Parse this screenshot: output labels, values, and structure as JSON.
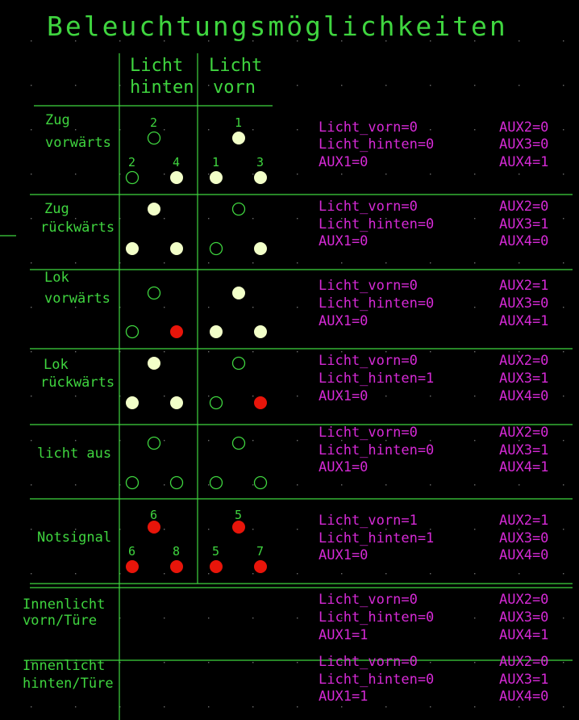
{
  "title": "Beleuchtungsmöglichkeiten",
  "headers": [
    {
      "line1": "Licht",
      "line2": "hinten"
    },
    {
      "line1": "Licht",
      "line2": "vorn"
    }
  ],
  "colors": {
    "background": "#000000",
    "lines": "#3fd53f",
    "text_green": "#3fd53f",
    "text_magenta": "#d62ad6",
    "light_on": "#f2ffc8",
    "light_red": "#e8150a",
    "dot_grid": "#c8c8c8"
  },
  "rows": [
    {
      "label": [
        "Zug",
        "vorwärts"
      ],
      "rear": {
        "top": "off",
        "left": "off",
        "right": "on",
        "top_num": "2",
        "left_num": "2",
        "right_num": "4"
      },
      "front": {
        "top": "on",
        "left": "on",
        "right": "on",
        "top_num": "1",
        "left_num": "1",
        "right_num": "3"
      },
      "values": {
        "licht_vorn": "Licht_vorn=0",
        "licht_hinten": "Licht_hinten=0",
        "aux1": "AUX1=0",
        "aux2": "AUX2=0",
        "aux3": "AUX3=0",
        "aux4": "AUX4=1"
      }
    },
    {
      "label": [
        "Zug",
        "rückwärts"
      ],
      "rear": {
        "top": "on",
        "left": "on",
        "right": "on"
      },
      "front": {
        "top": "off",
        "left": "off",
        "right": "on"
      },
      "values": {
        "licht_vorn": "Licht_vorn=0",
        "licht_hinten": "Licht_hinten=0",
        "aux1": "AUX1=0",
        "aux2": "AUX2=0",
        "aux3": "AUX3=1",
        "aux4": "AUX4=0"
      }
    },
    {
      "label": [
        "Lok",
        "vorwärts"
      ],
      "rear": {
        "top": "off",
        "left": "off",
        "right": "red"
      },
      "front": {
        "top": "on",
        "left": "on",
        "right": "on"
      },
      "values": {
        "licht_vorn": "Licht_vorn=0",
        "licht_hinten": "Licht_hinten=0",
        "aux1": "AUX1=0",
        "aux2": "AUX2=1",
        "aux3": "AUX3=0",
        "aux4": "AUX4=1"
      }
    },
    {
      "label": [
        "Lok",
        "rückwärts"
      ],
      "rear": {
        "top": "on",
        "left": "on",
        "right": "on"
      },
      "front": {
        "top": "off",
        "left": "off",
        "right": "red"
      },
      "values": {
        "licht_vorn": "Licht_vorn=0",
        "licht_hinten": "Licht_hinten=1",
        "aux1": "AUX1=0",
        "aux2": "AUX2=0",
        "aux3": "AUX3=1",
        "aux4": "AUX4=0"
      }
    },
    {
      "label": [
        "licht aus"
      ],
      "rear": {
        "top": "off",
        "left": "off",
        "right": "off"
      },
      "front": {
        "top": "off",
        "left": "off",
        "right": "off"
      },
      "values": {
        "licht_vorn": "Licht_vorn=0",
        "licht_hinten": "Licht_hinten=0",
        "aux1": "AUX1=0",
        "aux2": "AUX2=0",
        "aux3": "AUX3=1",
        "aux4": "AUX4=1"
      }
    },
    {
      "label": [
        "Notsignal"
      ],
      "rear": {
        "top": "red",
        "left": "red",
        "right": "red",
        "top_num": "6",
        "left_num": "6",
        "right_num": "8"
      },
      "front": {
        "top": "red",
        "left": "red",
        "right": "red",
        "top_num": "5",
        "left_num": "5",
        "right_num": "7"
      },
      "values": {
        "licht_vorn": "Licht_vorn=1",
        "licht_hinten": "Licht_hinten=1",
        "aux1": "AUX1=0",
        "aux2": "AUX2=1",
        "aux3": "AUX3=0",
        "aux4": "AUX4=0"
      }
    },
    {
      "label": [
        "Innenlicht",
        "vorn/Türe"
      ],
      "values": {
        "licht_vorn": "Licht_vorn=0",
        "licht_hinten": "Licht_hinten=0",
        "aux1": "AUX1=1",
        "aux2": "AUX2=0",
        "aux3": "AUX3=0",
        "aux4": "AUX4=1"
      }
    },
    {
      "label": [
        "Innenlicht",
        "hinten/Türe"
      ],
      "values": {
        "licht_vorn": "Licht_vorn=0",
        "licht_hinten": "Licht_hinten=0",
        "aux1": "AUX1=1",
        "aux2": "AUX2=0",
        "aux3": "AUX3=1",
        "aux4": "AUX4=0"
      }
    }
  ]
}
